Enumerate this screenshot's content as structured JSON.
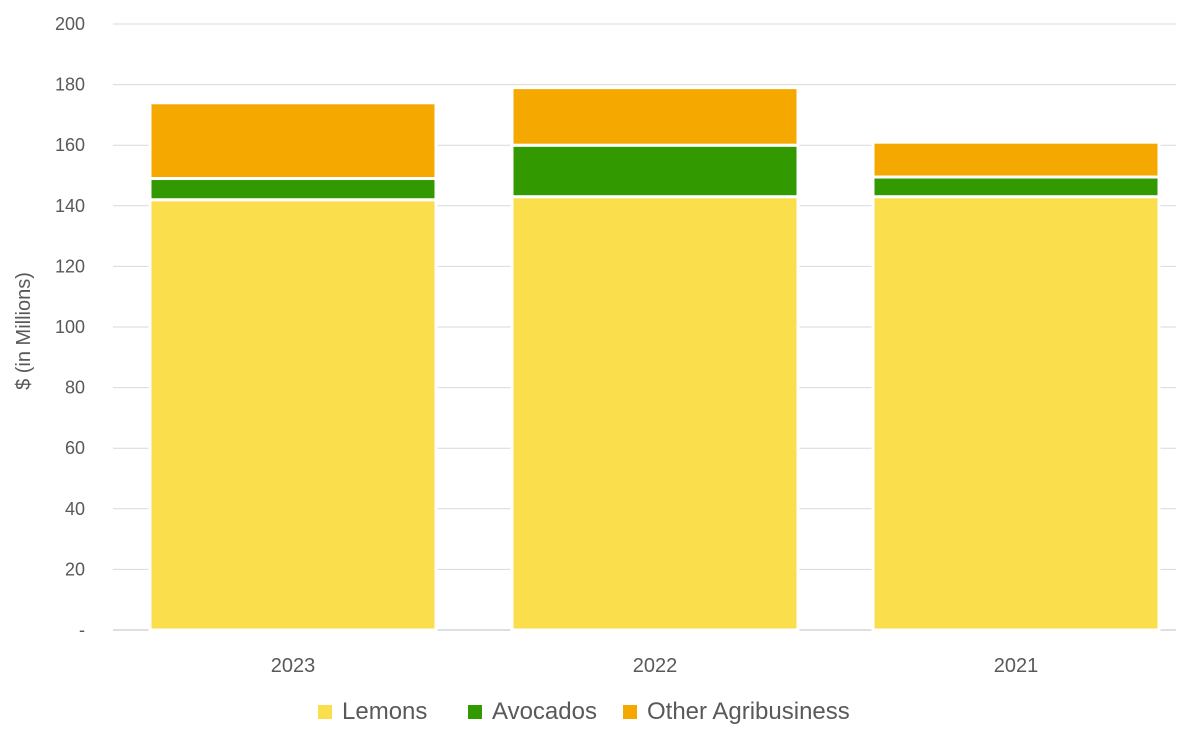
{
  "chart_data": {
    "type": "bar",
    "stacked": true,
    "categories": [
      "2023",
      "2022",
      "2021"
    ],
    "series": [
      {
        "name": "Lemons",
        "color": "#FADE4B",
        "values": [
          142,
          143,
          143
        ]
      },
      {
        "name": "Avocados",
        "color": "#339900",
        "values": [
          7,
          17,
          6.5
        ]
      },
      {
        "name": "Other Agribusiness",
        "color": "#F5A800",
        "values": [
          25,
          19,
          11.5
        ]
      }
    ],
    "ylabel": "$ (in Millions)",
    "xlabel": "",
    "title": "",
    "ylim": [
      0,
      200
    ],
    "yticks": [
      {
        "value": 0,
        "label": "-"
      },
      {
        "value": 20,
        "label": "20"
      },
      {
        "value": 40,
        "label": "40"
      },
      {
        "value": 60,
        "label": "60"
      },
      {
        "value": 80,
        "label": "80"
      },
      {
        "value": 100,
        "label": "100"
      },
      {
        "value": 120,
        "label": "120"
      },
      {
        "value": 140,
        "label": "140"
      },
      {
        "value": 160,
        "label": "160"
      },
      {
        "value": 180,
        "label": "180"
      },
      {
        "value": 200,
        "label": "200"
      }
    ],
    "grid": true,
    "legend_position": "bottom"
  }
}
